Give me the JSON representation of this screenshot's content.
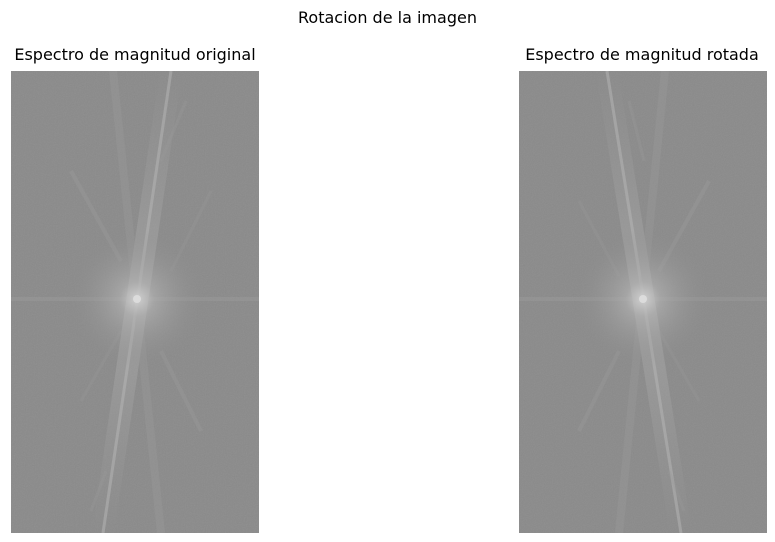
{
  "figure": {
    "title": "Rotacion de la imagen"
  },
  "panels": [
    {
      "title": "Espectro de magnitud original",
      "image": "magnitude-spectrum-original"
    },
    {
      "title": "Espectro de magnitud rotada",
      "image": "magnitude-spectrum-rotated"
    }
  ],
  "colors": {
    "background": "#ffffff",
    "spectrum_base": "#8a8a8a",
    "spectrum_center": "#c8c8c8"
  }
}
